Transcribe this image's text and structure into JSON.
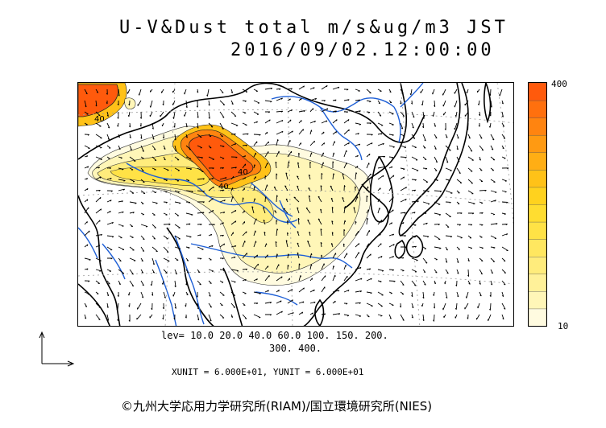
{
  "header": {
    "title": "U-V&Dust total m/s&ug/m3 JST",
    "timestamp": "2016/09/02.12:00:00"
  },
  "legend": {
    "max_label": "400",
    "min_label": "10",
    "colors": [
      "#fffbe0",
      "#fff6b8",
      "#fff199",
      "#ffec7c",
      "#ffe760",
      "#ffe246",
      "#ffdd30",
      "#ffd21e",
      "#ffc218",
      "#ffae14",
      "#ff9a12",
      "#ff8410",
      "#ff700e",
      "#ff5a0c"
    ]
  },
  "contour_levels": {
    "line1": "lev= 10.0 20.0 40.0 60.0 100. 150. 200.",
    "line2": "300. 400."
  },
  "units": "XUNIT = 6.000E+01, YUNIT = 6.000E+01",
  "credit": "©九州大学応用力学研究所(RIAM)/国立環境研究所(NIES)",
  "map": {
    "contour_labels": [
      "40",
      "40",
      "40"
    ],
    "coast_color": "#000000",
    "river_color": "#1e5fd6",
    "grid_color": "#9a9a9a"
  }
}
